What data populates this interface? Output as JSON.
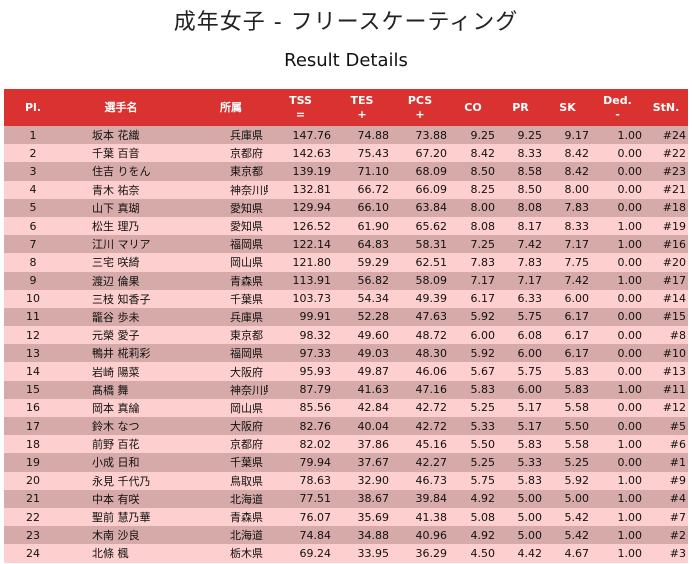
{
  "page": {
    "title": "成年女子 - フリースケーティング",
    "subtitle": "Result Details"
  },
  "table": {
    "headers": {
      "pl": "Pl.",
      "name": "選手名",
      "club": "所属",
      "tss": "TSS",
      "tss_sub": "=",
      "tes": "TES",
      "tes_sub": "+",
      "pcs": "PCS",
      "pcs_sub": "+",
      "co": "CO",
      "pr": "PR",
      "sk": "SK",
      "ded": "Ded.",
      "ded_sub": "-",
      "stn": "StN."
    },
    "rows": [
      {
        "pl": "1",
        "name": "坂本 花織",
        "club": "兵庫県",
        "tss": "147.76",
        "tes": "74.88",
        "pcs": "73.88",
        "co": "9.25",
        "pr": "9.25",
        "sk": "9.17",
        "ded": "1.00",
        "stn": "#24"
      },
      {
        "pl": "2",
        "name": "千葉 百音",
        "club": "京都府",
        "tss": "142.63",
        "tes": "75.43",
        "pcs": "67.20",
        "co": "8.42",
        "pr": "8.33",
        "sk": "8.42",
        "ded": "0.00",
        "stn": "#22"
      },
      {
        "pl": "3",
        "name": "住吉 りをん",
        "club": "東京都",
        "tss": "139.19",
        "tes": "71.10",
        "pcs": "68.09",
        "co": "8.50",
        "pr": "8.58",
        "sk": "8.42",
        "ded": "0.00",
        "stn": "#23"
      },
      {
        "pl": "4",
        "name": "青木 祐奈",
        "club": "神奈川県",
        "tss": "132.81",
        "tes": "66.72",
        "pcs": "66.09",
        "co": "8.25",
        "pr": "8.50",
        "sk": "8.00",
        "ded": "0.00",
        "stn": "#21"
      },
      {
        "pl": "5",
        "name": "山下 真瑚",
        "club": "愛知県",
        "tss": "129.94",
        "tes": "66.10",
        "pcs": "63.84",
        "co": "8.00",
        "pr": "8.08",
        "sk": "7.83",
        "ded": "0.00",
        "stn": "#18"
      },
      {
        "pl": "6",
        "name": "松生 理乃",
        "club": "愛知県",
        "tss": "126.52",
        "tes": "61.90",
        "pcs": "65.62",
        "co": "8.08",
        "pr": "8.17",
        "sk": "8.33",
        "ded": "1.00",
        "stn": "#19"
      },
      {
        "pl": "7",
        "name": "江川 マリア",
        "club": "福岡県",
        "tss": "122.14",
        "tes": "64.83",
        "pcs": "58.31",
        "co": "7.25",
        "pr": "7.42",
        "sk": "7.17",
        "ded": "1.00",
        "stn": "#16"
      },
      {
        "pl": "8",
        "name": "三宅 咲綺",
        "club": "岡山県",
        "tss": "121.80",
        "tes": "59.29",
        "pcs": "62.51",
        "co": "7.83",
        "pr": "7.83",
        "sk": "7.75",
        "ded": "0.00",
        "stn": "#20"
      },
      {
        "pl": "9",
        "name": "渡辺 倫果",
        "club": "青森県",
        "tss": "113.91",
        "tes": "56.82",
        "pcs": "58.09",
        "co": "7.17",
        "pr": "7.17",
        "sk": "7.42",
        "ded": "1.00",
        "stn": "#17"
      },
      {
        "pl": "10",
        "name": "三枝 知香子",
        "club": "千葉県",
        "tss": "103.73",
        "tes": "54.34",
        "pcs": "49.39",
        "co": "6.17",
        "pr": "6.33",
        "sk": "6.00",
        "ded": "0.00",
        "stn": "#14"
      },
      {
        "pl": "11",
        "name": "籠谷 歩未",
        "club": "兵庫県",
        "tss": "99.91",
        "tes": "52.28",
        "pcs": "47.63",
        "co": "5.92",
        "pr": "5.75",
        "sk": "6.17",
        "ded": "0.00",
        "stn": "#15"
      },
      {
        "pl": "12",
        "name": "元榮 愛子",
        "club": "東京都",
        "tss": "98.32",
        "tes": "49.60",
        "pcs": "48.72",
        "co": "6.00",
        "pr": "6.08",
        "sk": "6.17",
        "ded": "0.00",
        "stn": "#8"
      },
      {
        "pl": "13",
        "name": "鴨井 椛莉彩",
        "club": "福岡県",
        "tss": "97.33",
        "tes": "49.03",
        "pcs": "48.30",
        "co": "5.92",
        "pr": "6.00",
        "sk": "6.17",
        "ded": "0.00",
        "stn": "#10"
      },
      {
        "pl": "14",
        "name": "岩崎 陽菜",
        "club": "大阪府",
        "tss": "95.93",
        "tes": "49.87",
        "pcs": "46.06",
        "co": "5.67",
        "pr": "5.75",
        "sk": "5.83",
        "ded": "0.00",
        "stn": "#13"
      },
      {
        "pl": "15",
        "name": "髙橋 舞",
        "club": "神奈川県",
        "tss": "87.79",
        "tes": "41.63",
        "pcs": "47.16",
        "co": "5.83",
        "pr": "6.00",
        "sk": "5.83",
        "ded": "1.00",
        "stn": "#11"
      },
      {
        "pl": "16",
        "name": "岡本 真綸",
        "club": "岡山県",
        "tss": "85.56",
        "tes": "42.84",
        "pcs": "42.72",
        "co": "5.25",
        "pr": "5.17",
        "sk": "5.58",
        "ded": "0.00",
        "stn": "#12"
      },
      {
        "pl": "17",
        "name": "鈴木 なつ",
        "club": "大阪府",
        "tss": "82.76",
        "tes": "40.04",
        "pcs": "42.72",
        "co": "5.33",
        "pr": "5.17",
        "sk": "5.50",
        "ded": "0.00",
        "stn": "#5"
      },
      {
        "pl": "18",
        "name": "前野 百花",
        "club": "京都府",
        "tss": "82.02",
        "tes": "37.86",
        "pcs": "45.16",
        "co": "5.50",
        "pr": "5.83",
        "sk": "5.58",
        "ded": "1.00",
        "stn": "#6"
      },
      {
        "pl": "19",
        "name": "小成 日和",
        "club": "千葉県",
        "tss": "79.94",
        "tes": "37.67",
        "pcs": "42.27",
        "co": "5.25",
        "pr": "5.33",
        "sk": "5.25",
        "ded": "0.00",
        "stn": "#1"
      },
      {
        "pl": "20",
        "name": "永見 千代乃",
        "club": "鳥取県",
        "tss": "78.63",
        "tes": "32.90",
        "pcs": "46.73",
        "co": "5.75",
        "pr": "5.83",
        "sk": "5.92",
        "ded": "1.00",
        "stn": "#9"
      },
      {
        "pl": "21",
        "name": "中本 有咲",
        "club": "北海道",
        "tss": "77.51",
        "tes": "38.67",
        "pcs": "39.84",
        "co": "4.92",
        "pr": "5.00",
        "sk": "5.00",
        "ded": "1.00",
        "stn": "#4"
      },
      {
        "pl": "22",
        "name": "聖前 慧乃華",
        "club": "青森県",
        "tss": "76.07",
        "tes": "35.69",
        "pcs": "41.38",
        "co": "5.08",
        "pr": "5.00",
        "sk": "5.42",
        "ded": "1.00",
        "stn": "#7"
      },
      {
        "pl": "23",
        "name": "木南 沙良",
        "club": "北海道",
        "tss": "74.84",
        "tes": "34.88",
        "pcs": "40.96",
        "co": "4.92",
        "pr": "5.00",
        "sk": "5.42",
        "ded": "1.00",
        "stn": "#2"
      },
      {
        "pl": "24",
        "name": "北條 楓",
        "club": "栃木県",
        "tss": "69.24",
        "tes": "33.95",
        "pcs": "36.29",
        "co": "4.50",
        "pr": "4.42",
        "sk": "4.67",
        "ded": "1.00",
        "stn": "#3"
      }
    ]
  }
}
